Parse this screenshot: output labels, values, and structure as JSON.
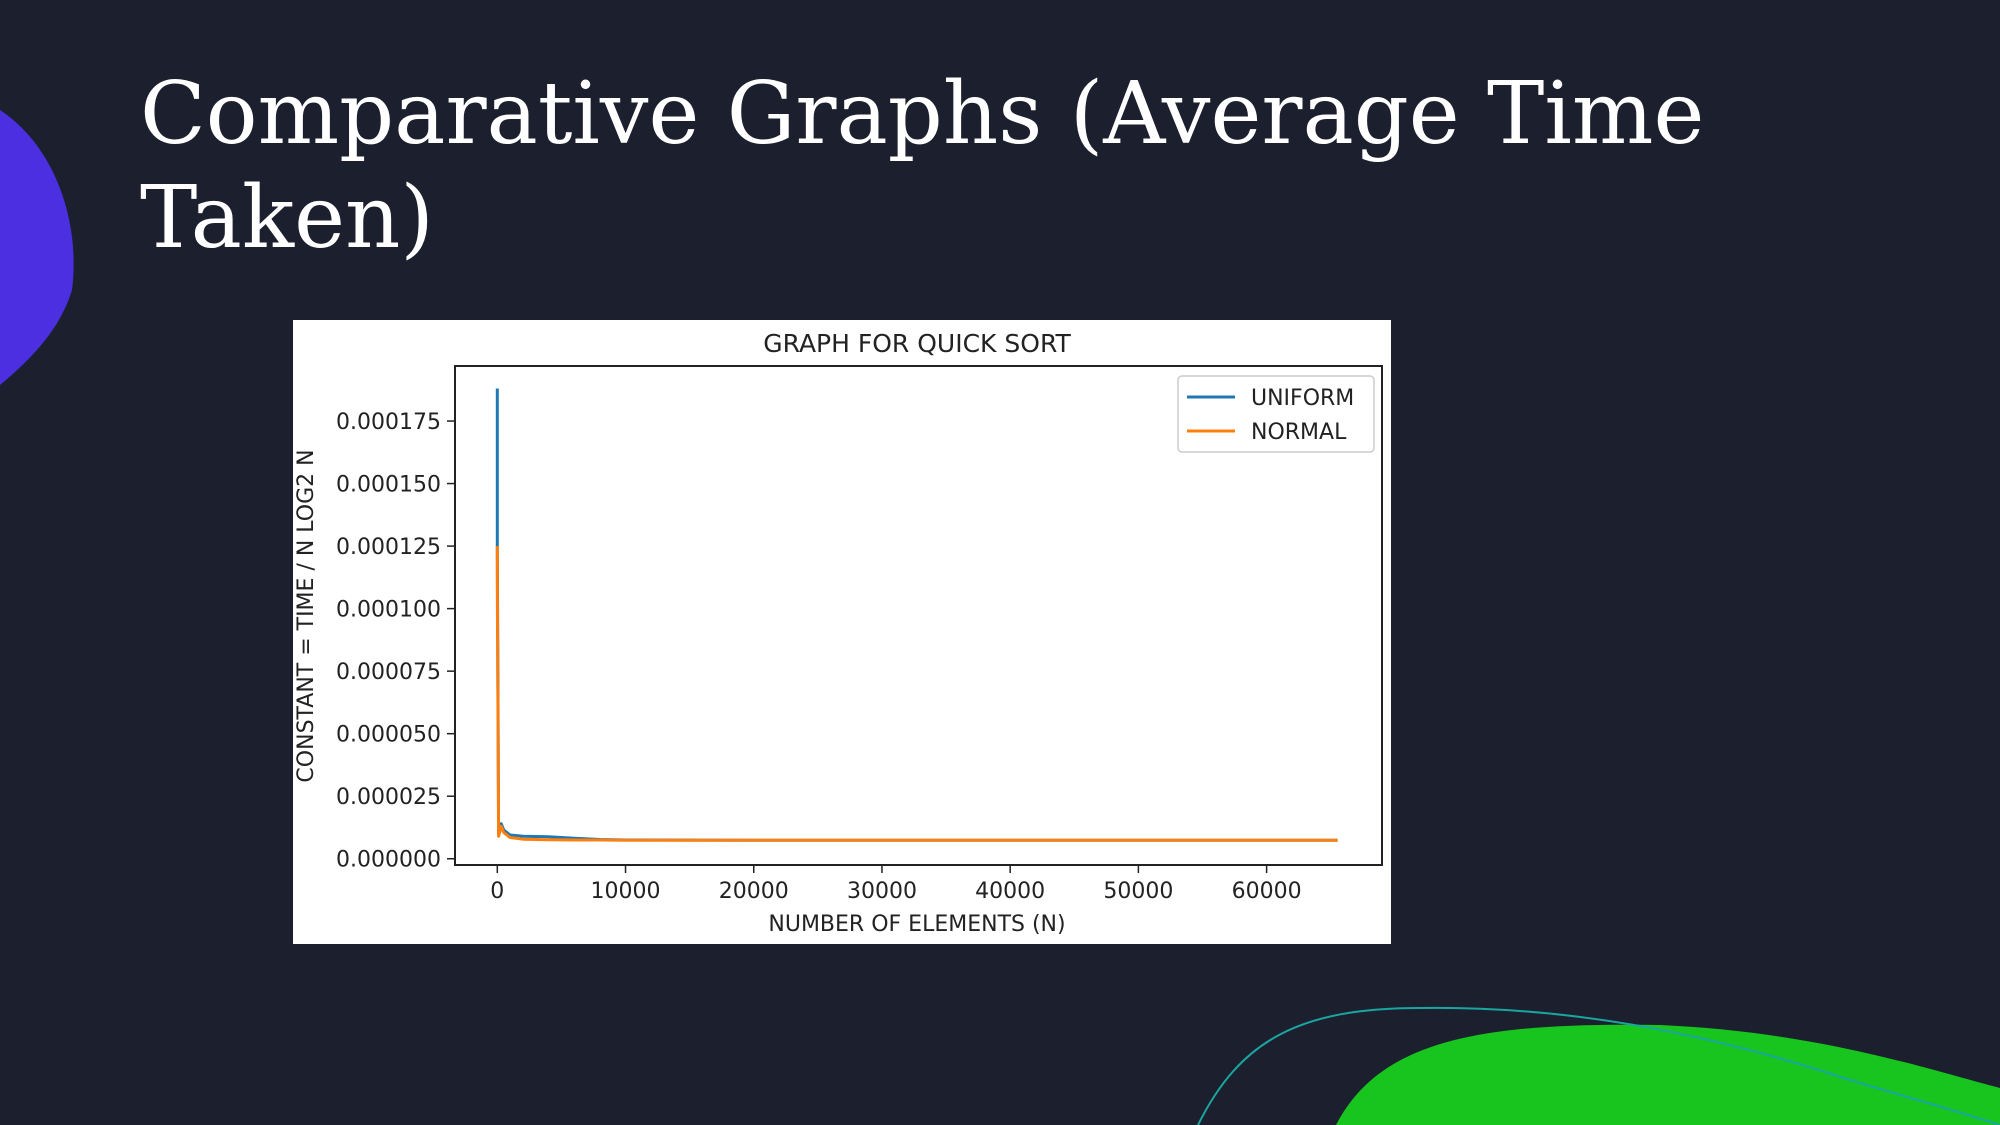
{
  "slide": {
    "title": "Comparative Graphs (Average Time Taken)"
  },
  "colors": {
    "background": "#1c1f2e",
    "blob_purple": "#4b2fe0",
    "blob_green": "#18c41e",
    "curve_teal": "#1aa6a0"
  },
  "chart_data": {
    "type": "line",
    "title": "GRAPH FOR QUICK SORT",
    "xlabel": "NUMBER OF ELEMENTS (N)",
    "ylabel": "CONSTANT = TIME / N LOG2 N",
    "xlim": [
      -3300,
      69000
    ],
    "ylim": [
      -2.5e-06,
      0.000197
    ],
    "x_ticks": [
      0,
      10000,
      20000,
      30000,
      40000,
      50000,
      60000
    ],
    "x_tick_labels": [
      "0",
      "10000",
      "20000",
      "30000",
      "40000",
      "50000",
      "60000"
    ],
    "y_ticks": [
      0,
      2.5e-05,
      5e-05,
      7.5e-05,
      0.0001,
      0.000125,
      0.00015,
      0.000175
    ],
    "y_tick_labels": [
      "0.000000",
      "0.000025",
      "0.000050",
      "0.000075",
      "0.000100",
      "0.000125",
      "0.000150",
      "0.000175"
    ],
    "grid": false,
    "legend_position": "top-right",
    "series": [
      {
        "name": "UNIFORM",
        "color": "#1f77b4",
        "x": [
          1,
          2,
          100,
          300,
          500,
          1000,
          2000,
          4000,
          6000,
          8000,
          10000,
          20000,
          30000,
          40000,
          50000,
          60000,
          65536
        ],
        "y": [
          0.000188,
          0.000125,
          1e-05,
          1.4e-05,
          1.15e-05,
          9.5e-06,
          9e-06,
          8.8e-06,
          8.2e-06,
          7.7e-06,
          7.5e-06,
          7.4e-06,
          7.4e-06,
          7.4e-06,
          7.4e-06,
          7.4e-06,
          7.4e-06
        ]
      },
      {
        "name": "NORMAL",
        "color": "#ff7f0e",
        "x": [
          1,
          2,
          100,
          300,
          500,
          1000,
          2000,
          4000,
          6000,
          8000,
          10000,
          20000,
          30000,
          40000,
          50000,
          60000,
          65536
        ],
        "y": [
          0.000125,
          0.00011,
          9e-06,
          1.3e-05,
          1.05e-05,
          8.5e-06,
          7.8e-06,
          7.6e-06,
          7.5e-06,
          7.5e-06,
          7.4e-06,
          7.4e-06,
          7.4e-06,
          7.4e-06,
          7.4e-06,
          7.4e-06,
          7.4e-06
        ]
      }
    ]
  }
}
